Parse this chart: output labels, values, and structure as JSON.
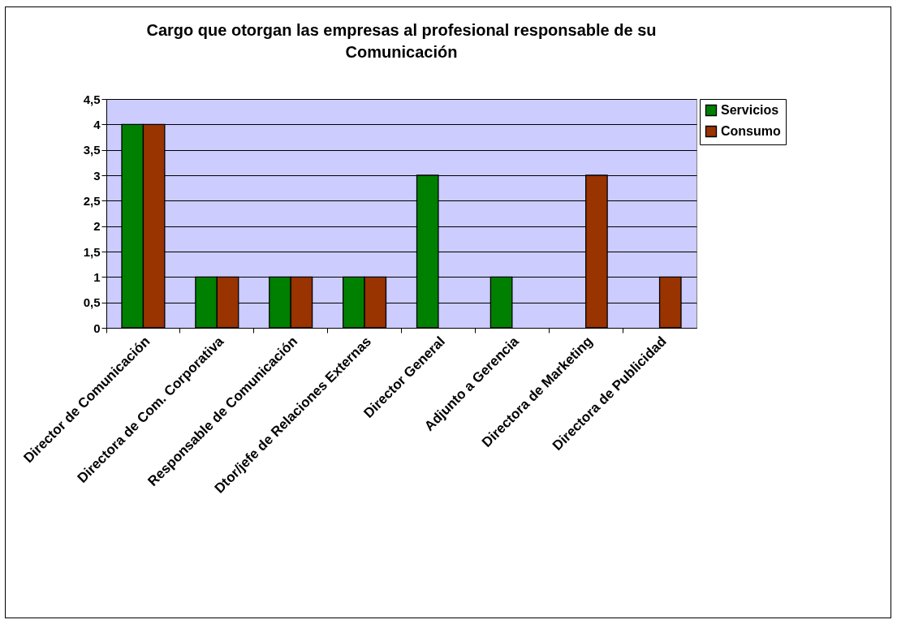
{
  "chart_data": {
    "type": "bar",
    "title": "Cargo que otorgan las empresas al profesional responsable de su Comunicación",
    "categories": [
      "Director de Comunicación",
      "Directora de Com. Corporativa",
      "Responsable de Comunicación",
      "Dtor/jefe de Relaciones Externas",
      "Director General",
      "Adjunto a Gerencia",
      "Directora de Marketing",
      "Directora de Publicidad"
    ],
    "series": [
      {
        "name": "Servicios",
        "color": "#008000",
        "values": [
          4,
          1,
          1,
          1,
          3,
          1,
          null,
          null
        ]
      },
      {
        "name": "Consumo",
        "color": "#993300",
        "values": [
          4,
          1,
          1,
          1,
          null,
          null,
          3,
          1
        ]
      }
    ],
    "ylim": [
      0,
      4.5
    ],
    "yticks": [
      0,
      {
        "value": 0.5,
        "label": "0,5"
      },
      1,
      {
        "value": 1.5,
        "label": "1,5"
      },
      2,
      {
        "value": 2.5,
        "label": "2,5"
      },
      3,
      {
        "value": 3.5,
        "label": "3,5"
      },
      4,
      {
        "value": 4.5,
        "label": "4,5"
      }
    ],
    "grid": "y",
    "legend": "right"
  }
}
